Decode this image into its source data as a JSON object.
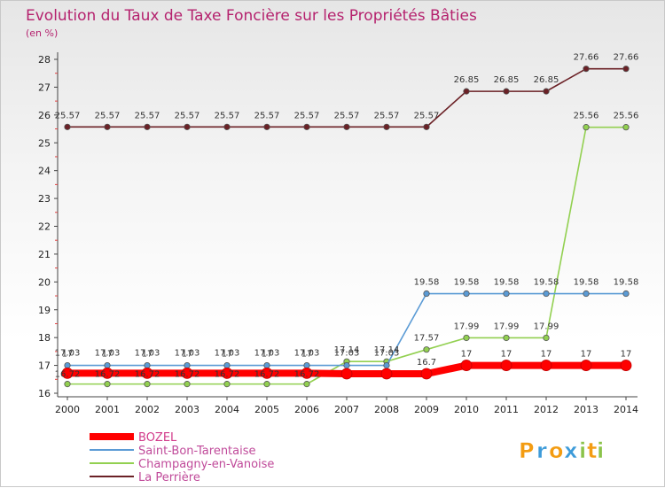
{
  "chart_data": {
    "type": "line",
    "title": "Evolution du Taux de Taxe Foncière sur les Propriétés Bâties",
    "subtitle": "(en %)",
    "xlabel": "",
    "ylabel": "",
    "ylim": [
      16,
      28
    ],
    "yticks": [
      16,
      17,
      18,
      19,
      20,
      21,
      22,
      23,
      24,
      25,
      26,
      27,
      28
    ],
    "grid": false,
    "legend_position": "bottom-left",
    "categories": [
      "2000",
      "2001",
      "2002",
      "2003",
      "2004",
      "2005",
      "2006",
      "2007",
      "2008",
      "2009",
      "2010",
      "2011",
      "2012",
      "2013",
      "2014"
    ],
    "series": [
      {
        "name": "BOZEL",
        "color": "#ff0000",
        "values": [
          16.72,
          16.72,
          16.72,
          16.72,
          16.72,
          16.72,
          16.72,
          16.7,
          16.7,
          16.7,
          17,
          17,
          17,
          17,
          17
        ],
        "labels": [
          "16.72",
          "16.72",
          "16.72",
          "16.72",
          "16.72",
          "16.72",
          "16.72",
          "",
          "",
          "16.7",
          "17",
          "17",
          "17",
          "17",
          "17"
        ]
      },
      {
        "name": "Saint-Bon-Tarentaise",
        "color": "#5b9bd5",
        "values": [
          17,
          17,
          17,
          17,
          17,
          17,
          17,
          17,
          17,
          19.58,
          19.58,
          19.58,
          19.58,
          19.58,
          19.58
        ],
        "labels": [
          "17",
          "17",
          "17",
          "17",
          "17",
          "17",
          "17",
          "",
          "",
          "19.58",
          "19.58",
          "19.58",
          "19.58",
          "19.58",
          "19.58"
        ]
      },
      {
        "name": "Champagny-en-Vanoise",
        "color": "#92d050",
        "values": [
          16.33,
          16.33,
          16.33,
          16.33,
          16.33,
          16.33,
          16.33,
          17.14,
          17.14,
          17.57,
          17.99,
          17.99,
          17.99,
          25.56,
          25.56
        ],
        "labels": [
          "",
          "",
          "",
          "",
          "",
          "",
          "",
          "17.14",
          "17.14",
          "17.57",
          "17.99",
          "17.99",
          "17.99",
          "25.56",
          "25.56"
        ]
      },
      {
        "name": "La Perrière",
        "color": "#6b2126",
        "values": [
          25.57,
          25.57,
          25.57,
          25.57,
          25.57,
          25.57,
          25.57,
          25.57,
          25.57,
          25.57,
          26.85,
          26.85,
          26.85,
          27.66,
          27.66
        ],
        "labels": [
          "25.57",
          "25.57",
          "25.57",
          "25.57",
          "25.57",
          "25.57",
          "25.57",
          "25.57",
          "25.57",
          "25.57",
          "26.85",
          "26.85",
          "26.85",
          "27.66",
          "27.66"
        ]
      }
    ],
    "extra_labels": [
      {
        "year": "2000",
        "text": "17.03"
      },
      {
        "year": "2001",
        "text": "17.03"
      },
      {
        "year": "2002",
        "text": "17.03"
      },
      {
        "year": "2003",
        "text": "17.03"
      },
      {
        "year": "2004",
        "text": "17.03"
      },
      {
        "year": "2005",
        "text": "17.03"
      },
      {
        "year": "2006",
        "text": "17.03"
      },
      {
        "year": "2007",
        "text": "17.03"
      },
      {
        "year": "2008",
        "text": "17.03"
      }
    ]
  },
  "logo": {
    "letters": [
      "P",
      "r",
      "o",
      "x",
      "i",
      "t",
      "i"
    ],
    "colors": [
      "#f39c12",
      "#3d9bd9",
      "#f39c12",
      "#3d9bd9",
      "#8bc34a",
      "#f39c12",
      "#8bc34a"
    ]
  }
}
